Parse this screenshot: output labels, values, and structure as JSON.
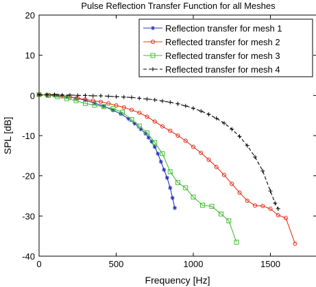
{
  "chart_data": {
    "type": "line",
    "title": "Pulse Reflection Transfer Function for all Meshes",
    "xlabel": "Frequency [Hz]",
    "ylabel": "SPL [dB]",
    "xlim": [
      0,
      1800
    ],
    "ylim": [
      -40,
      20
    ],
    "xticks": [
      "0",
      "500",
      "1000",
      "1500"
    ],
    "yticks": [
      "-40",
      "-30",
      "-20",
      "-10",
      "0",
      "10",
      "20"
    ],
    "grid": false,
    "legend_position": "top-right",
    "series": [
      {
        "name": "Reflection transfer for mesh 1",
        "color": "#2233bb",
        "marker": "star",
        "dash": "solid",
        "x": [
          0,
          60,
          120,
          180,
          240,
          300,
          360,
          420,
          480,
          530,
          580,
          620,
          660,
          690,
          710,
          730,
          750,
          770,
          790,
          810,
          830,
          850,
          865,
          880
        ],
        "y": [
          0.2,
          0.1,
          0,
          -0.3,
          -0.7,
          -1.2,
          -1.9,
          -2.7,
          -3.7,
          -4.6,
          -5.8,
          -7,
          -8.4,
          -9.5,
          -10.5,
          -11.5,
          -12.8,
          -14.5,
          -16.5,
          -18.5,
          -20.5,
          -23,
          -25.5,
          -28
        ]
      },
      {
        "name": "Reflected transfer for mesh 2",
        "color": "#e8321a",
        "marker": "circle",
        "dash": "solid",
        "x": [
          0,
          50,
          100,
          150,
          200,
          250,
          300,
          350,
          400,
          450,
          500,
          550,
          600,
          650,
          700,
          750,
          800,
          850,
          900,
          950,
          1000,
          1050,
          1100,
          1150,
          1200,
          1250,
          1300,
          1350,
          1400,
          1450,
          1500,
          1550,
          1600,
          1660
        ],
        "y": [
          0.2,
          0.1,
          0,
          -0.2,
          -0.4,
          -0.7,
          -1,
          -1.3,
          -1.6,
          -2,
          -2.5,
          -3,
          -3.6,
          -4.3,
          -5.3,
          -6.5,
          -7.7,
          -8.8,
          -10,
          -11.3,
          -12.8,
          -14.3,
          -16,
          -17.8,
          -19.8,
          -22,
          -24.2,
          -26.2,
          -27.4,
          -27.5,
          -28.2,
          -29.8,
          -30.5,
          -36.9
        ]
      },
      {
        "name": "Reflected transfer for mesh 3",
        "color": "#44bb33",
        "marker": "square",
        "dash": "solid",
        "x": [
          0,
          60,
          120,
          180,
          240,
          300,
          360,
          420,
          480,
          540,
          600,
          650,
          700,
          750,
          800,
          850,
          900,
          950,
          1000,
          1060,
          1120,
          1180,
          1230,
          1280
        ],
        "y": [
          0.2,
          0,
          -0.3,
          -0.8,
          -1.3,
          -2,
          -2.4,
          -2.8,
          -3.3,
          -4.2,
          -6,
          -7.6,
          -9.3,
          -11.7,
          -14.5,
          -19,
          -21.7,
          -23,
          -25.3,
          -27.3,
          -27.6,
          -29.5,
          -31.2,
          -36.5
        ]
      },
      {
        "name": "Reflected transfer for mesh 4",
        "color": "#000000",
        "marker": "plus",
        "dash": "dashed",
        "x": [
          0,
          50,
          100,
          150,
          200,
          250,
          300,
          350,
          400,
          450,
          500,
          550,
          600,
          650,
          700,
          750,
          800,
          850,
          900,
          950,
          1000,
          1050,
          1100,
          1150,
          1200,
          1250,
          1300,
          1350,
          1400,
          1450,
          1500,
          1530,
          1550
        ],
        "y": [
          0.2,
          0.2,
          0.2,
          0.1,
          0.1,
          0,
          0,
          -0.1,
          -0.1,
          -0.2,
          -0.3,
          -0.4,
          -0.5,
          -0.7,
          -0.9,
          -1.1,
          -1.4,
          -1.7,
          -2.1,
          -2.6,
          -3.2,
          -3.9,
          -4.7,
          -5.7,
          -6.9,
          -8.4,
          -10.2,
          -12.5,
          -15.3,
          -18.8,
          -23.8,
          -26.8,
          -28.2
        ]
      }
    ]
  }
}
